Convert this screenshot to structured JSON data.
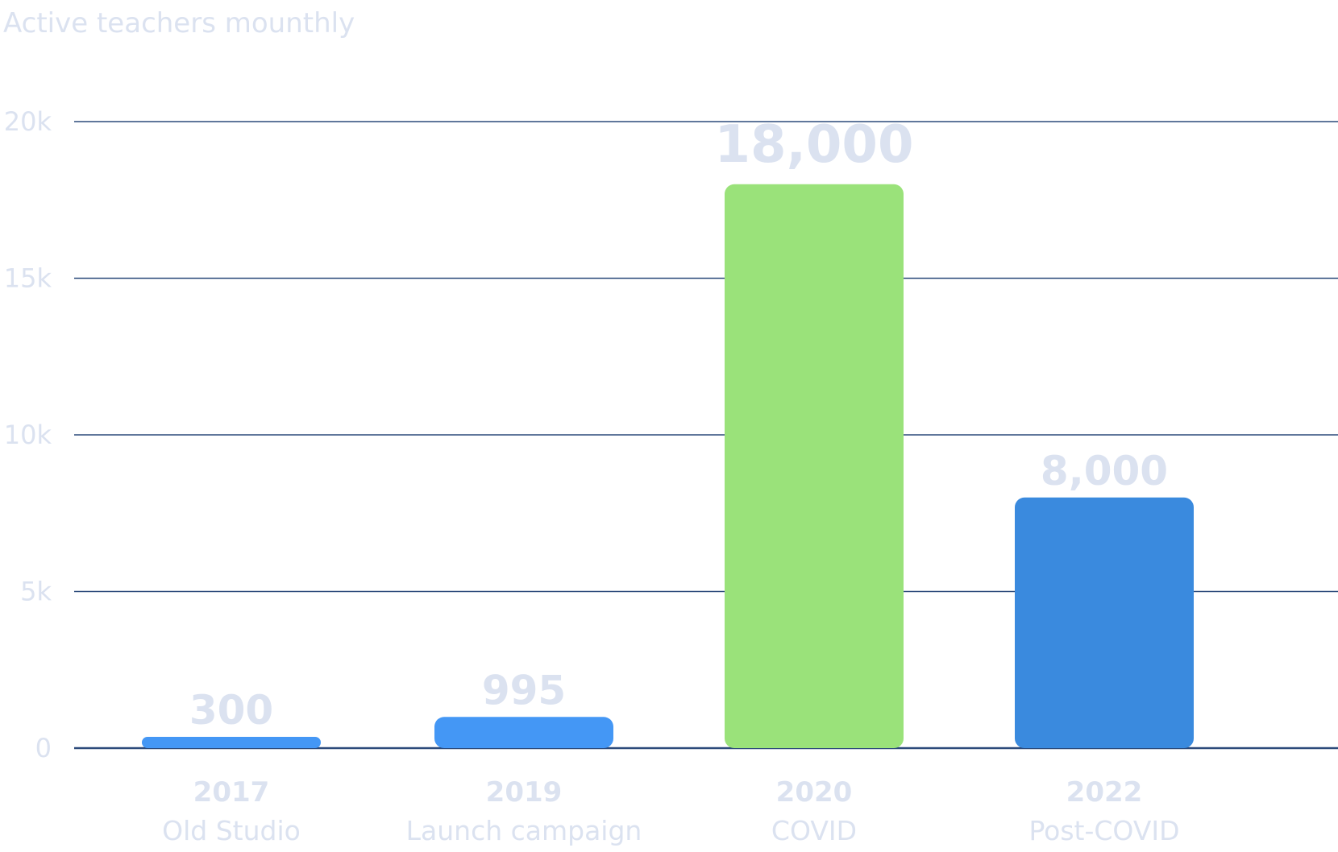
{
  "chart_data": {
    "type": "bar",
    "title": "Active teachers mounthly",
    "categories": [
      "2017",
      "2019",
      "2020",
      "2022"
    ],
    "category_sublabels": [
      "Old Studio",
      "Launch campaign",
      "COVID",
      "Post-COVID"
    ],
    "values": [
      300,
      995,
      18000,
      8000
    ],
    "value_labels": [
      "300",
      "995",
      "18,000",
      "8,000"
    ],
    "ylim": [
      0,
      20000
    ],
    "yticks": [
      0,
      5000,
      10000,
      15000,
      20000
    ],
    "ytick_labels": [
      "0",
      "5k",
      "10k",
      "15k",
      "20k"
    ],
    "xlabel": "",
    "ylabel": "",
    "grid": true,
    "legend": "none",
    "highlight_category": "2020"
  },
  "colors": {
    "bars": [
      "#4497f5",
      "#4497f5",
      "#9ae27a",
      "#3a8ade"
    ],
    "category_labels": [
      "#dbe2f0",
      "#dbe2f0",
      "#9ae27a",
      "#dbe2f0"
    ],
    "value_labels": [
      "#dbe2f0",
      "#dbe2f0",
      "#9ae27a",
      "#dbe2f0"
    ],
    "gridline": "#2c4a7a",
    "axis_text": "#dbe2f0"
  }
}
